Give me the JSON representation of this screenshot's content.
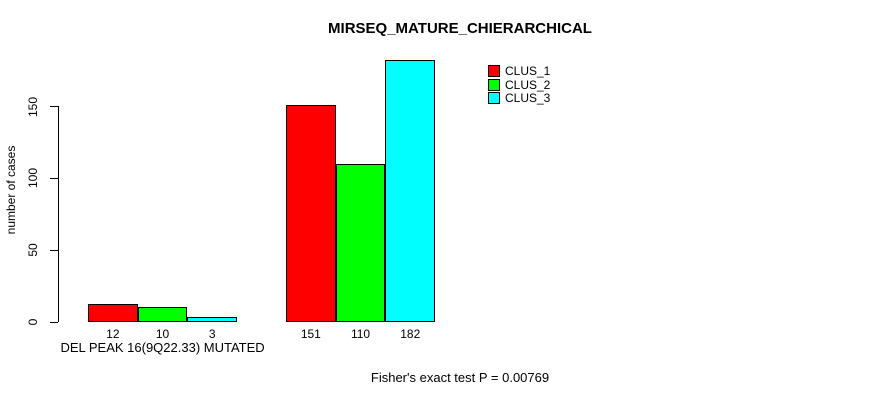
{
  "chart_data": {
    "type": "bar",
    "title": "MIRSEQ_MATURE_CHIERARCHICAL",
    "ylabel": "number of cases",
    "xlabel": "",
    "ylim": [
      0,
      185
    ],
    "yticks": [
      0,
      50,
      100,
      150
    ],
    "grid": false,
    "legend_position": "top-right",
    "categories": [
      "DEL PEAK 16(9Q22.33) MUTATED",
      ""
    ],
    "series": [
      {
        "name": "CLUS_1",
        "color": "#ff0000",
        "values": [
          12,
          151
        ]
      },
      {
        "name": "CLUS_2",
        "color": "#00ff00",
        "values": [
          10,
          110
        ]
      },
      {
        "name": "CLUS_3",
        "color": "#00ffff",
        "values": [
          3,
          182
        ]
      }
    ],
    "bar_value_labels": [
      [
        "12",
        "10",
        "3"
      ],
      [
        "151",
        "110",
        "182"
      ]
    ],
    "footnote": "Fisher's exact test P = 0.00769",
    "colors": {
      "bar_border": "#000000",
      "axis": "#000000",
      "text": "#000000",
      "background": "#ffffff"
    }
  }
}
